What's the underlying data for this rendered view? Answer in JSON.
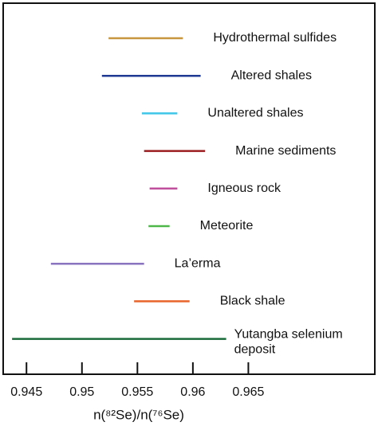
{
  "chart_data": {
    "type": "range",
    "categories": [
      "Hydrothermal sulfides",
      "Altered shales",
      "Unaltered shales",
      "Marine sediments",
      "Igneous rock",
      "Meteorite",
      "La’erma",
      "Black shale",
      "Yutangba selenium deposit"
    ],
    "low": [
      0.9524,
      0.9518,
      0.9554,
      0.9556,
      0.9561,
      0.956,
      0.9472,
      0.9547,
      0.9437
    ],
    "high": [
      0.9591,
      0.9607,
      0.9586,
      0.9611,
      0.9586,
      0.9579,
      0.9556,
      0.9597,
      0.963
    ],
    "colors": [
      "#c8963e",
      "#1f3a93",
      "#3ec6e8",
      "#9b1c1f",
      "#c04f9d",
      "#4db848",
      "#8a74c0",
      "#e8642a",
      "#1a6b3a"
    ],
    "xlim": [
      0.9429,
      0.9764
    ],
    "xticks": [
      0.945,
      0.95,
      0.955,
      0.96,
      0.965
    ],
    "xlabel": "n(⁸²Se)/n(⁷⁶Se)"
  }
}
